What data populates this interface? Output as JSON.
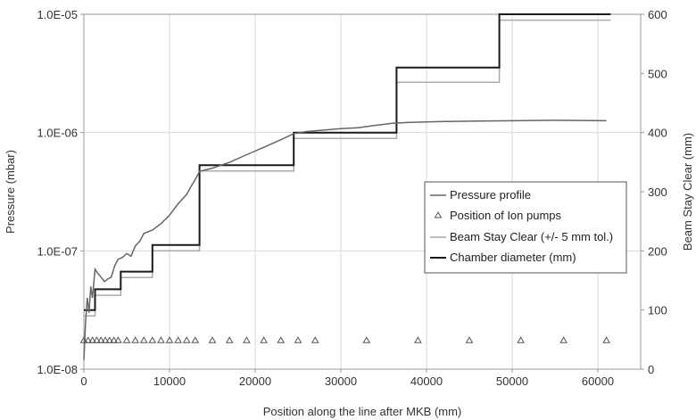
{
  "chart_data": {
    "type": "line",
    "xlabel": "Position along the line after MKB (mm)",
    "ylabel_left": "Pressure (mbar)",
    "ylabel_right": "Beam Stay Clear (mm)",
    "xlim": [
      0,
      65000
    ],
    "xticks": [
      0,
      10000,
      20000,
      30000,
      40000,
      50000,
      60000
    ],
    "ylim_left": [
      1e-08,
      1e-05
    ],
    "y_left_scale": "log",
    "yticks_left": [
      "1.0E-08",
      "1.0E-07",
      "1.0E-06",
      "1.0E-05"
    ],
    "ylim_right": [
      0,
      600
    ],
    "yticks_right": [
      0,
      100,
      200,
      300,
      400,
      500,
      600
    ],
    "grid": true,
    "legend_position": "center-right",
    "colors": {
      "pressure": "#666666",
      "pumps": "#555555",
      "bsc": "#aaaaaa",
      "chamber": "#1a1a1a",
      "grid": "#d9d9d9"
    },
    "series": [
      {
        "name": "Pressure profile",
        "axis": "left",
        "style": "line",
        "x": [
          0,
          200,
          400,
          600,
          800,
          1000,
          1300,
          1600,
          2000,
          2400,
          2800,
          3200,
          3600,
          4000,
          4500,
          5000,
          5500,
          6000,
          6500,
          7000,
          7500,
          8000,
          9000,
          10000,
          11000,
          12000,
          12500,
          13000,
          13500,
          15000,
          17000,
          19000,
          21000,
          23000,
          24500,
          26000,
          28000,
          30000,
          32000,
          34000,
          36000,
          38000,
          42000,
          46000,
          50000,
          55000,
          61000
        ],
        "y": [
          1.2e-08,
          2.5e-08,
          4e-08,
          3e-08,
          5e-08,
          4e-08,
          7e-08,
          6.5e-08,
          6e-08,
          5.5e-08,
          5.8e-08,
          6e-08,
          7.5e-08,
          8.5e-08,
          8.8e-08,
          9.5e-08,
          9e-08,
          1.1e-07,
          1.2e-07,
          1.4e-07,
          1.45e-07,
          1.5e-07,
          1.7e-07,
          2e-07,
          2.5e-07,
          3e-07,
          3.5e-07,
          4e-07,
          4.7e-07,
          5e-07,
          5.6e-07,
          6.5e-07,
          7.5e-07,
          8.7e-07,
          9.8e-07,
          1.02e-06,
          1.05e-06,
          1.08e-06,
          1.1e-06,
          1.15e-06,
          1.2e-06,
          1.22e-06,
          1.24e-06,
          1.25e-06,
          1.26e-06,
          1.27e-06,
          1.26e-06
        ]
      },
      {
        "name": "Position of Ion pumps",
        "axis": "left",
        "style": "markers",
        "x": [
          0,
          500,
          1000,
          1500,
          2000,
          2500,
          3000,
          3500,
          4000,
          5000,
          6000,
          7000,
          8000,
          9000,
          10000,
          11000,
          12000,
          13000,
          15000,
          17000,
          19000,
          21000,
          23000,
          25000,
          27000,
          33000,
          39000,
          45000,
          51000,
          56000,
          61000
        ],
        "y": [
          1.75e-08,
          1.75e-08,
          1.75e-08,
          1.75e-08,
          1.75e-08,
          1.75e-08,
          1.75e-08,
          1.75e-08,
          1.75e-08,
          1.75e-08,
          1.75e-08,
          1.75e-08,
          1.75e-08,
          1.75e-08,
          1.75e-08,
          1.75e-08,
          1.75e-08,
          1.75e-08,
          1.75e-08,
          1.75e-08,
          1.75e-08,
          1.75e-08,
          1.75e-08,
          1.75e-08,
          1.75e-08,
          1.75e-08,
          1.75e-08,
          1.75e-08,
          1.75e-08,
          1.75e-08,
          1.75e-08
        ]
      },
      {
        "name": "Beam Stay Clear (+/- 5 mm tol.)",
        "axis": "right",
        "style": "step",
        "x": [
          0,
          1300,
          1300,
          4300,
          4300,
          8000,
          8000,
          13500,
          13500,
          24500,
          24500,
          36500,
          36500,
          48500,
          48500,
          61500
        ],
        "y": [
          90,
          90,
          125,
          125,
          155,
          155,
          200,
          200,
          335,
          335,
          390,
          390,
          485,
          485,
          590,
          590
        ]
      },
      {
        "name": "Chamber diameter (mm)",
        "axis": "right",
        "style": "step",
        "x": [
          0,
          1300,
          1300,
          4300,
          4300,
          8000,
          8000,
          13500,
          13500,
          24500,
          24500,
          36500,
          36500,
          48500,
          48500,
          61500
        ],
        "y": [
          100,
          100,
          135,
          135,
          165,
          165,
          210,
          210,
          345,
          345,
          400,
          400,
          510,
          510,
          600,
          600
        ]
      }
    ]
  }
}
